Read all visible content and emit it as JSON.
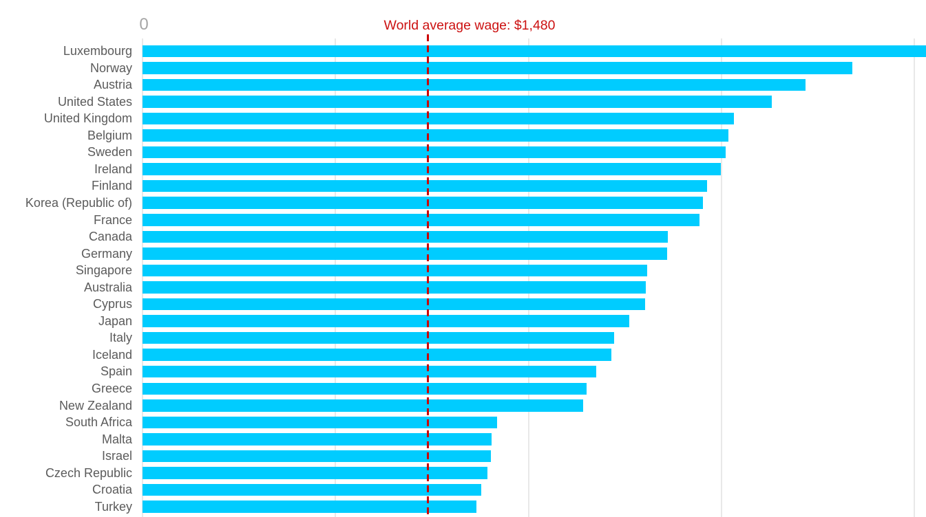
{
  "chart_data": {
    "type": "bar",
    "orientation": "horizontal",
    "title": "",
    "xlabel": "",
    "ylabel": "",
    "categories": [
      "Luxembourg",
      "Norway",
      "Austria",
      "United States",
      "United Kingdom",
      "Belgium",
      "Sweden",
      "Ireland",
      "Finland",
      "Korea (Republic of)",
      "France",
      "Canada",
      "Germany",
      "Singapore",
      "Australia",
      "Cyprus",
      "Japan",
      "Italy",
      "Iceland",
      "Spain",
      "Greece",
      "New Zealand",
      "South Africa",
      "Malta",
      "Israel",
      "Czech Republic",
      "Croatia",
      "Turkey"
    ],
    "values": [
      4089,
      3678,
      3437,
      3263,
      3065,
      3035,
      3023,
      2997,
      2925,
      2903,
      2886,
      2724,
      2720,
      2616,
      2610,
      2605,
      2522,
      2445,
      2431,
      2352,
      2300,
      2283,
      1838,
      1808,
      1804,
      1786,
      1756,
      1731
    ],
    "xlim": [
      0,
      4060
    ],
    "gridline_values": [
      0,
      1000,
      2000,
      3000,
      4000
    ],
    "visible_tick_labels": [
      {
        "value": 0,
        "label": "0"
      }
    ],
    "annotation": {
      "text": "World average wage: $1,480",
      "value": 1480
    },
    "grid": true,
    "legend_position": "none",
    "colors": {
      "bar": "#00CCFF",
      "gridline": "#E8E8E8",
      "annotation_text": "#CC1111",
      "average_line": "#CC0000",
      "tick_label": "#A6A6A6",
      "category_label": "#5B5B5B",
      "background": "#FFFFFF"
    }
  }
}
